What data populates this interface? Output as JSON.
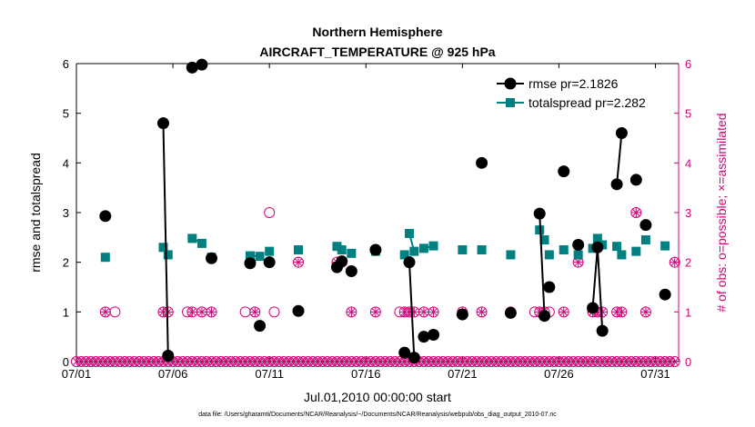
{
  "chart_data": {
    "type": "line",
    "title": "Northern Hemisphere",
    "subtitle": "AIRCRAFT_TEMPERATURE @ 925 hPa",
    "xlabel": "Jul.01,2010 00:00:00 start",
    "ylabel": "rmse and totalspread",
    "y2label": "# of obs: o=possible; ×=assimilated",
    "footnote": "data file: /Users/gharamti/Documents/NCAR/Reanalysis/~/Documents/NCAR/Reanalysis/webpub/obs_diag_output_2010-07.nc",
    "xlim": [
      1,
      32.2
    ],
    "ylim": [
      0,
      6
    ],
    "y2lim": [
      0,
      6
    ],
    "x_ticks": [
      1,
      6,
      11,
      16,
      21,
      26,
      31
    ],
    "x_tick_labels": [
      "07/01",
      "07/06",
      "07/11",
      "07/16",
      "07/21",
      "07/26",
      "07/31"
    ],
    "y_ticks": [
      0,
      1,
      2,
      3,
      4,
      5,
      6
    ],
    "y2_ticks": [
      0,
      1,
      2,
      3,
      4,
      5,
      6
    ],
    "legend_position": "top-right",
    "colors": {
      "rmse": "#000000",
      "spread": "#008080",
      "obs": "#d6007a"
    },
    "series": [
      {
        "name": "rmse pr=2.1826",
        "marker": "circle",
        "segments": [
          [
            [
              2.5,
              2.93
            ]
          ],
          [
            [
              5.5,
              4.8
            ],
            [
              5.75,
              0.12
            ]
          ],
          [
            [
              7.0,
              5.92
            ],
            [
              7.5,
              5.98
            ]
          ],
          [
            [
              8.0,
              2.08
            ]
          ],
          [
            [
              10.0,
              1.98
            ]
          ],
          [
            [
              10.5,
              0.72
            ]
          ],
          [
            [
              11.0,
              2.0
            ]
          ],
          [
            [
              12.5,
              1.02
            ]
          ],
          [
            [
              14.5,
              1.9
            ],
            [
              14.75,
              2.02
            ]
          ],
          [
            [
              15.25,
              1.82
            ]
          ],
          [
            [
              16.5,
              2.25
            ]
          ],
          [
            [
              18.0,
              0.18
            ]
          ],
          [
            [
              18.25,
              2.0
            ],
            [
              18.5,
              0.08
            ]
          ],
          [
            [
              19.0,
              0.5
            ],
            [
              19.5,
              0.54
            ]
          ],
          [
            [
              21.0,
              0.95
            ]
          ],
          [
            [
              22.0,
              4.0
            ]
          ],
          [
            [
              23.5,
              0.98
            ]
          ],
          [
            [
              25.0,
              2.98
            ],
            [
              25.25,
              0.92
            ]
          ],
          [
            [
              25.5,
              1.5
            ]
          ],
          [
            [
              26.25,
              3.83
            ]
          ],
          [
            [
              27.0,
              2.35
            ]
          ],
          [
            [
              27.75,
              1.08
            ],
            [
              28.0,
              2.3
            ],
            [
              28.25,
              0.62
            ]
          ],
          [
            [
              29.0,
              3.57
            ],
            [
              29.25,
              4.6
            ]
          ],
          [
            [
              30.0,
              3.66
            ]
          ],
          [
            [
              30.5,
              2.75
            ]
          ],
          [
            [
              31.5,
              1.35
            ]
          ]
        ]
      },
      {
        "name": "totalspread pr=2.282",
        "marker": "square",
        "segments": [
          [
            [
              2.5,
              2.1
            ]
          ],
          [
            [
              5.5,
              2.3
            ],
            [
              5.75,
              2.15
            ]
          ],
          [
            [
              7.0,
              2.48
            ],
            [
              7.5,
              2.38
            ]
          ],
          [
            [
              8.0,
              2.1
            ]
          ],
          [
            [
              10.0,
              2.13
            ],
            [
              10.5,
              2.12
            ]
          ],
          [
            [
              11.0,
              2.22
            ]
          ],
          [
            [
              12.5,
              2.25
            ]
          ],
          [
            [
              14.5,
              2.32
            ],
            [
              14.75,
              2.25
            ]
          ],
          [
            [
              15.25,
              2.18
            ]
          ],
          [
            [
              16.5,
              2.22
            ]
          ],
          [
            [
              18.0,
              2.15
            ]
          ],
          [
            [
              18.25,
              2.58
            ],
            [
              18.5,
              2.22
            ]
          ],
          [
            [
              19.0,
              2.28
            ],
            [
              19.5,
              2.33
            ]
          ],
          [
            [
              21.0,
              2.25
            ]
          ],
          [
            [
              22.0,
              2.25
            ]
          ],
          [
            [
              23.5,
              2.15
            ]
          ],
          [
            [
              25.0,
              2.65
            ],
            [
              25.25,
              2.45
            ]
          ],
          [
            [
              25.5,
              2.15
            ]
          ],
          [
            [
              26.25,
              2.25
            ]
          ],
          [
            [
              27.0,
              2.15
            ]
          ],
          [
            [
              27.75,
              2.28
            ],
            [
              28.0,
              2.48
            ],
            [
              28.25,
              2.35
            ]
          ],
          [
            [
              29.0,
              2.32
            ],
            [
              29.25,
              2.15
            ]
          ],
          [
            [
              30.0,
              2.22
            ]
          ],
          [
            [
              30.5,
              2.45
            ]
          ],
          [
            [
              31.5,
              2.33
            ]
          ]
        ]
      }
    ],
    "obs_possible_points": [
      [
        2.5,
        1
      ],
      [
        3.0,
        1
      ],
      [
        5.5,
        1
      ],
      [
        5.75,
        1
      ],
      [
        6.75,
        1
      ],
      [
        7.0,
        1
      ],
      [
        7.5,
        1
      ],
      [
        8.0,
        1
      ],
      [
        9.75,
        1
      ],
      [
        10.25,
        1
      ],
      [
        11.0,
        3
      ],
      [
        11.0,
        2
      ],
      [
        11.25,
        1
      ],
      [
        12.5,
        2
      ],
      [
        14.5,
        2
      ],
      [
        14.75,
        2
      ],
      [
        15.25,
        1
      ],
      [
        16.5,
        1
      ],
      [
        17.75,
        1
      ],
      [
        18.0,
        1
      ],
      [
        18.25,
        1
      ],
      [
        18.5,
        1
      ],
      [
        19.0,
        1
      ],
      [
        19.5,
        1
      ],
      [
        21.0,
        1
      ],
      [
        22.0,
        1
      ],
      [
        23.5,
        1
      ],
      [
        24.75,
        1
      ],
      [
        25.0,
        1
      ],
      [
        25.25,
        1
      ],
      [
        25.5,
        1
      ],
      [
        26.25,
        1
      ],
      [
        27.0,
        2
      ],
      [
        27.75,
        1
      ],
      [
        28.0,
        1
      ],
      [
        28.25,
        1
      ],
      [
        29.0,
        1
      ],
      [
        29.25,
        1
      ],
      [
        30.0,
        3
      ],
      [
        30.5,
        1
      ],
      [
        32.0,
        2
      ]
    ],
    "obs_assimilated_points": [
      [
        2.5,
        1
      ],
      [
        5.5,
        1
      ],
      [
        5.75,
        1
      ],
      [
        7.0,
        1
      ],
      [
        7.5,
        1
      ],
      [
        8.0,
        1
      ],
      [
        10.25,
        1
      ],
      [
        11.0,
        2
      ],
      [
        12.5,
        2
      ],
      [
        14.5,
        2
      ],
      [
        14.75,
        2
      ],
      [
        15.25,
        1
      ],
      [
        16.5,
        1
      ],
      [
        18.0,
        1
      ],
      [
        18.25,
        1
      ],
      [
        18.5,
        1
      ],
      [
        19.0,
        1
      ],
      [
        19.5,
        1
      ],
      [
        21.0,
        1
      ],
      [
        22.0,
        1
      ],
      [
        23.5,
        1
      ],
      [
        25.0,
        1
      ],
      [
        25.25,
        1
      ],
      [
        26.25,
        1
      ],
      [
        27.0,
        2
      ],
      [
        27.75,
        1
      ],
      [
        28.0,
        1
      ],
      [
        28.25,
        1
      ],
      [
        29.0,
        1
      ],
      [
        29.25,
        1
      ],
      [
        30.0,
        3
      ],
      [
        30.5,
        1
      ],
      [
        32.0,
        2
      ]
    ],
    "obs_zero_x_range": [
      1,
      32.2
    ],
    "obs_zero_step": 0.25
  }
}
